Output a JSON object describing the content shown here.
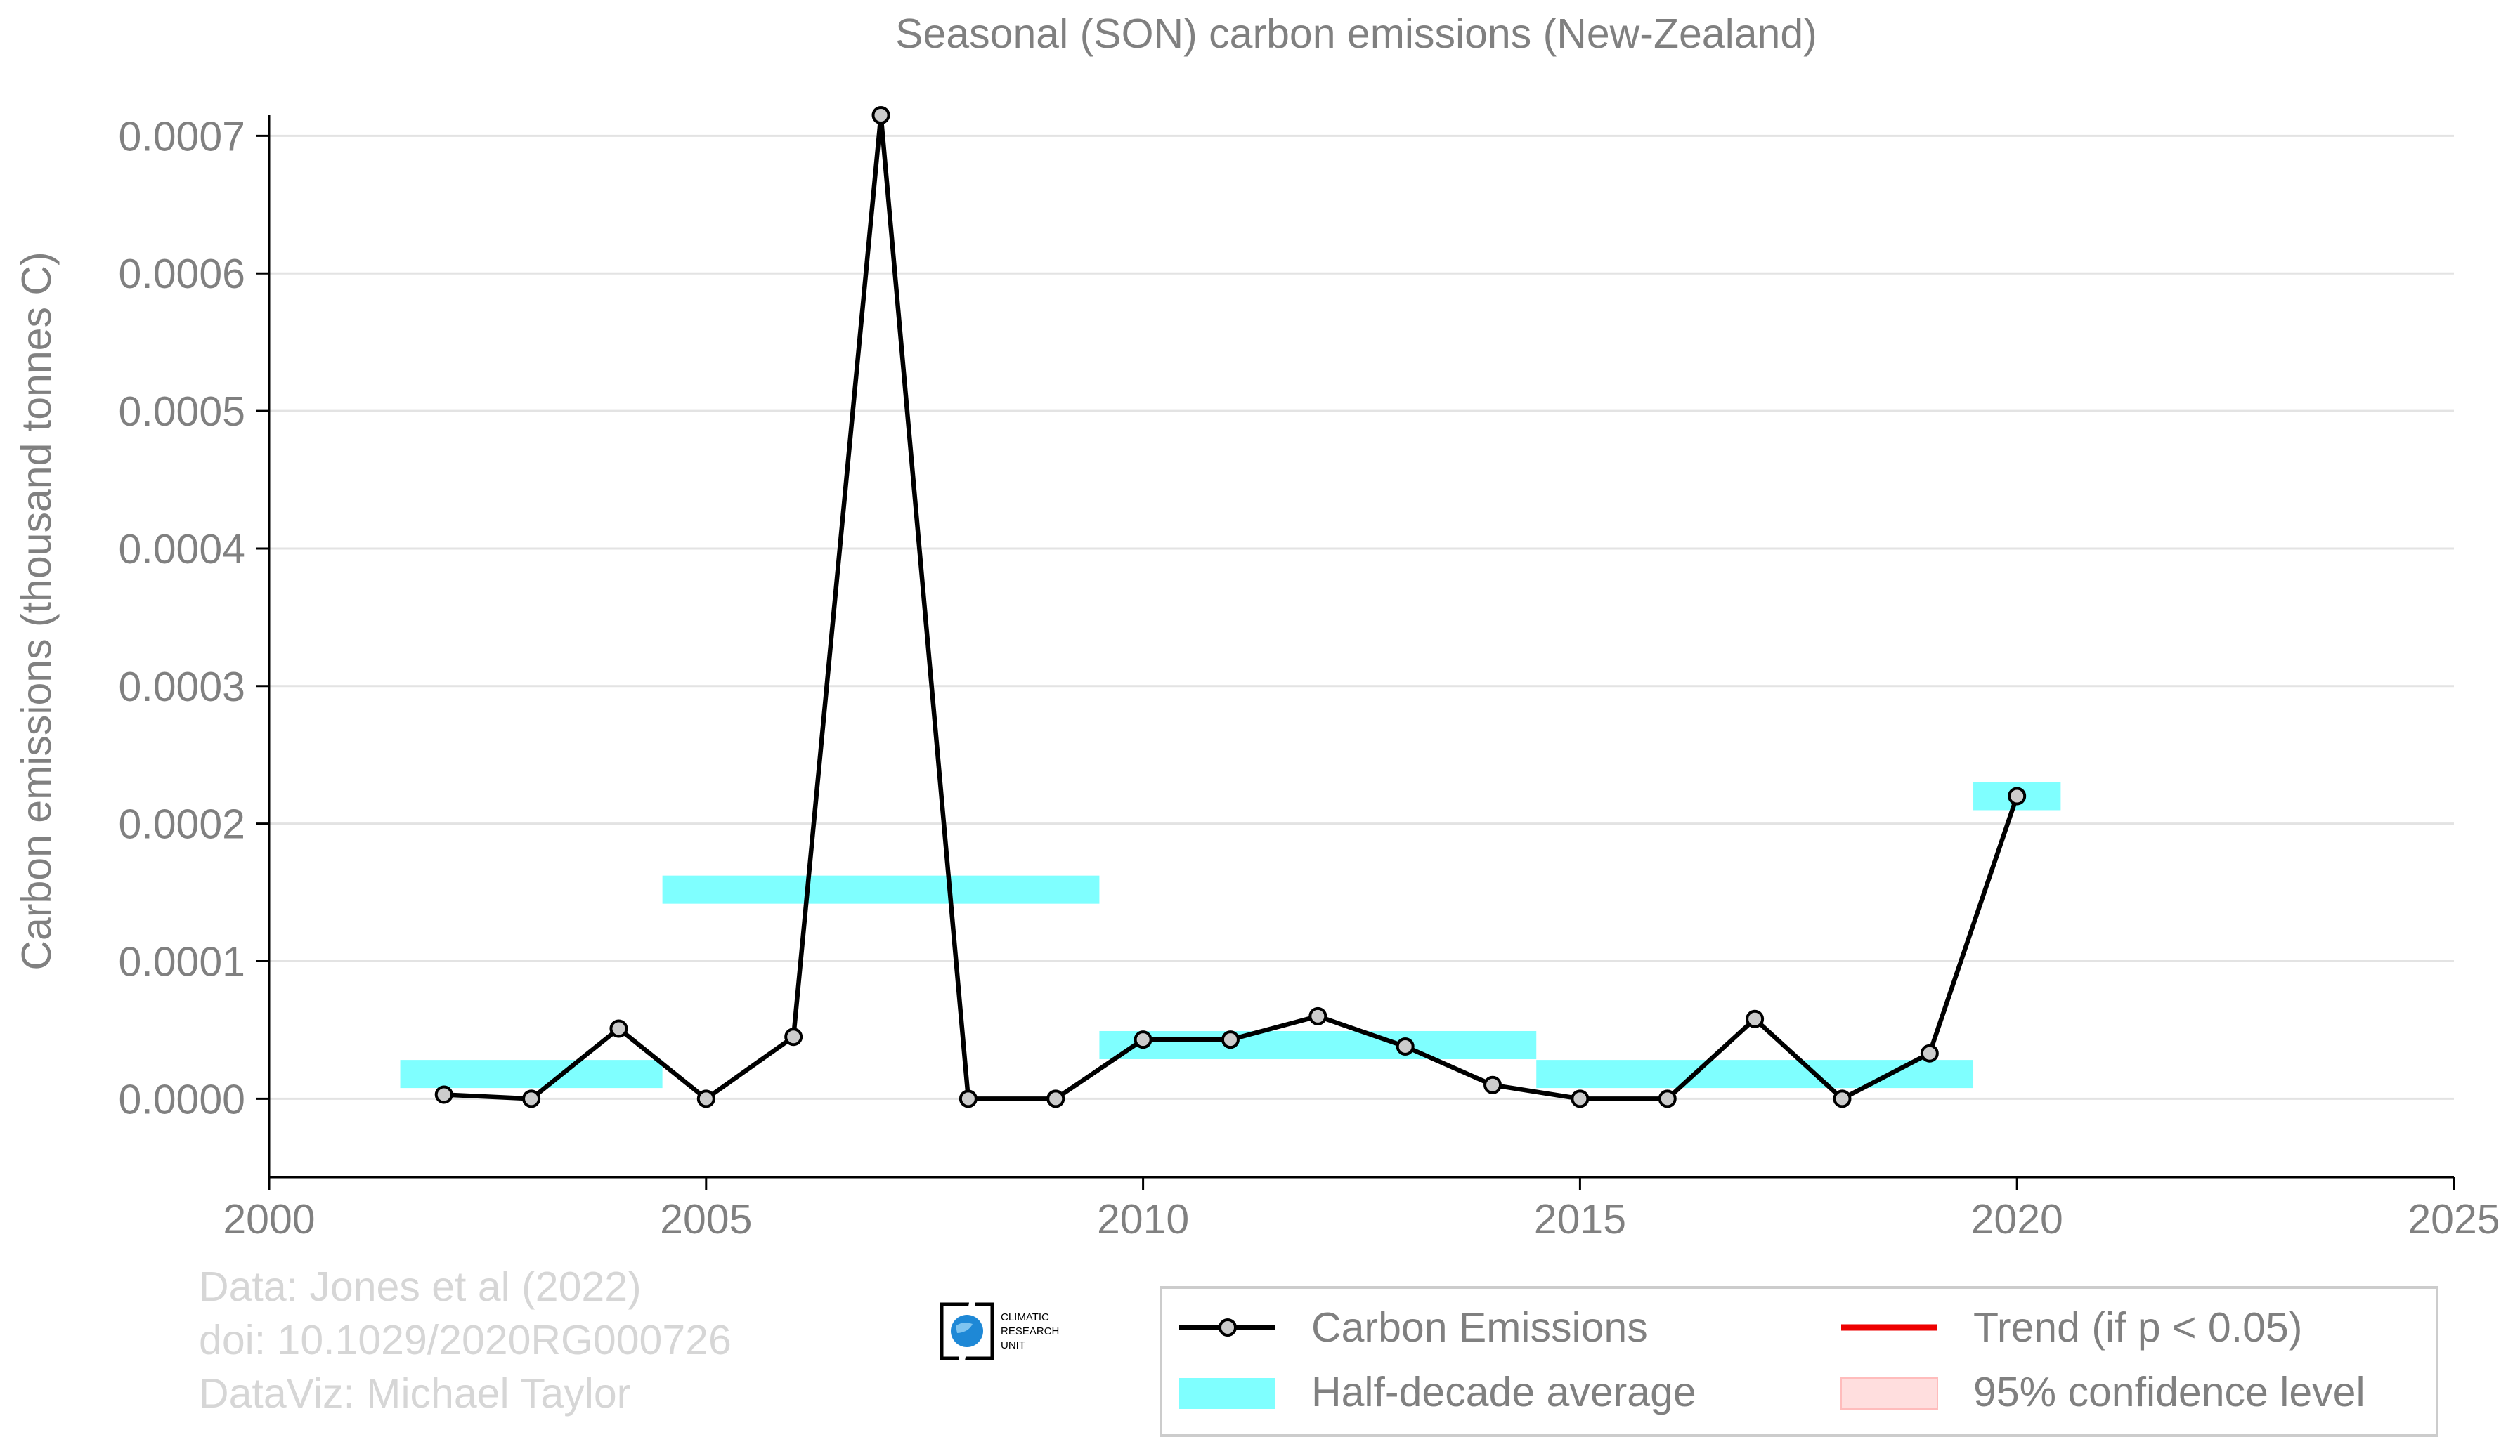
{
  "chart_data": {
    "type": "line",
    "title": "Seasonal (SON) carbon emissions (New-Zealand)",
    "xlabel": "",
    "ylabel": "Carbon emissions (thousand tonnes C)",
    "xlim": [
      2000,
      2025
    ],
    "ylim": [
      -5.7e-05,
      0.000715
    ],
    "x_ticks": [
      "2000",
      "2005",
      "2010",
      "2015",
      "2020",
      "2025"
    ],
    "x_tick_values": [
      2000,
      2005,
      2010,
      2015,
      2020,
      2025
    ],
    "y_ticks": [
      "0.0000",
      "0.0001",
      "0.0002",
      "0.0003",
      "0.0004",
      "0.0005",
      "0.0006",
      "0.0007"
    ],
    "y_tick_values": [
      0.0,
      0.0001,
      0.0002,
      0.0003,
      0.0004,
      0.0005,
      0.0006,
      0.0007
    ],
    "grid": "horizontal",
    "series": [
      {
        "name": "Carbon Emissions",
        "color": "#000000",
        "marker_fill": "#cccccc",
        "x": [
          2002,
          2003,
          2004,
          2005,
          2006,
          2007,
          2008,
          2009,
          2010,
          2011,
          2012,
          2013,
          2014,
          2015,
          2016,
          2017,
          2018,
          2019,
          2020
        ],
        "y": [
          3e-06,
          0.0,
          5.1e-05,
          0.0,
          4.5e-05,
          0.000715,
          0.0,
          0.0,
          4.3e-05,
          4.3e-05,
          6e-05,
          3.8e-05,
          1e-05,
          0.0,
          0.0,
          5.8e-05,
          0.0,
          3.3e-05,
          0.00022
        ]
      }
    ],
    "half_decade_average": {
      "name": "Half-decade average",
      "color": "#00ffff",
      "segments": [
        {
          "x0": 2001.5,
          "x1": 2004.5,
          "y": 1.8e-05
        },
        {
          "x0": 2004.5,
          "x1": 2009.5,
          "y": 0.000152
        },
        {
          "x0": 2009.5,
          "x1": 2014.5,
          "y": 3.9e-05
        },
        {
          "x0": 2014.5,
          "x1": 2019.5,
          "y": 1.8e-05
        },
        {
          "x0": 2019.5,
          "x1": 2020.5,
          "y": 0.00022
        }
      ]
    },
    "legend": {
      "position": "bottom-right",
      "entries": [
        {
          "label": "Carbon Emissions",
          "type": "line-marker",
          "color": "#000000"
        },
        {
          "label": "Trend (if p < 0.05)",
          "type": "line",
          "color": "#ee0000"
        },
        {
          "label": "Half-decade average",
          "type": "band",
          "color": "#00ffff"
        },
        {
          "label": "95% confidence level",
          "type": "band",
          "color": "#ffdede"
        }
      ]
    }
  },
  "credits": {
    "line1": "Data: Jones et al (2022)",
    "line2": "doi: 10.1029/2020RG000726",
    "line3": "DataViz: Michael Taylor"
  },
  "logo": {
    "line1": "CLIMATIC",
    "line2": "RESEARCH",
    "line3": "UNIT"
  },
  "colors": {
    "text": "#808080",
    "grid": "#e3e3e3",
    "credits": "#d6d6d6"
  }
}
